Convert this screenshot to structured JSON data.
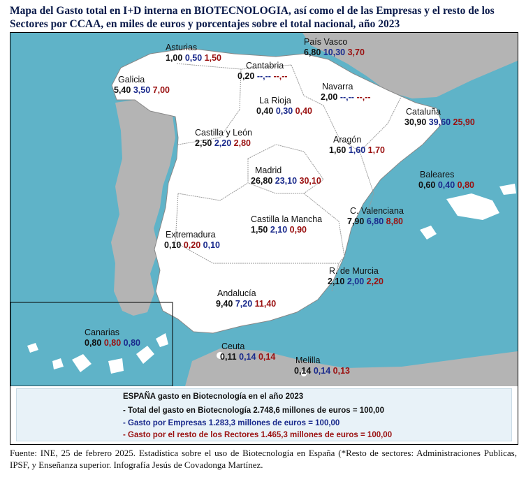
{
  "title": "Mapa del Gasto total en I+D interna en BIOTECNOLOGIA, así como el de las Empresas y el resto de los Sectores por CCAA, en miles de euros y porcentajes sobre el total nacional, año 2023",
  "colors": {
    "sea": "#5fb3c8",
    "land_spain": "#ffffff",
    "land_other": "#b4b4b4",
    "total": "#111111",
    "empresas": "#1a2a8c",
    "resto": "#9a1010"
  },
  "regions": [
    {
      "name": "Asturias",
      "total": "1,00",
      "empresas": "0,50",
      "resto": "1,50"
    },
    {
      "name": "País Vasco",
      "total": "6,80",
      "empresas": "10,30",
      "resto": "3,70"
    },
    {
      "name": "Cantabria",
      "total": "0,20",
      "empresas": "--,--",
      "resto": "--,--"
    },
    {
      "name": "Galicia",
      "total": "5,40",
      "empresas": "3,50",
      "resto": "7,00"
    },
    {
      "name": "Navarra",
      "total": "2,00",
      "empresas": "--,--",
      "resto": "--,--"
    },
    {
      "name": "La Rioja",
      "total": "0,40",
      "empresas": "0,30",
      "resto": "0,40"
    },
    {
      "name": "Cataluña",
      "total": "30,90",
      "empresas": "39,60",
      "resto": "25,90"
    },
    {
      "name": "Castilla y León",
      "total": "2,50",
      "empresas": "2,20",
      "resto": "2,80"
    },
    {
      "name": "Aragón",
      "total": "1,60",
      "empresas": "1,60",
      "resto": "1,70"
    },
    {
      "name": "Madrid",
      "total": "26,80",
      "empresas": "23,10",
      "resto": "30,10"
    },
    {
      "name": "Baleares",
      "total": "0,60",
      "empresas": "0,40",
      "resto": "0,80"
    },
    {
      "name": "C. Valenciana",
      "total": "7,90",
      "empresas": "6,80",
      "resto": "8,80"
    },
    {
      "name": "Castilla la Mancha",
      "total": "1,50",
      "empresas": "2,10",
      "resto": "0,90"
    },
    {
      "name": "Extremadura",
      "total": "0,10",
      "empresas": "0,20",
      "resto": "0,10"
    },
    {
      "name": "R. de Murcia",
      "total": "2,10",
      "empresas": "2,00",
      "resto": "2,20"
    },
    {
      "name": "Andalucía",
      "total": "9,40",
      "empresas": "7,20",
      "resto": "11,40"
    },
    {
      "name": "Canarias",
      "total": "0,80",
      "empresas": "0,80",
      "resto": "0,80"
    },
    {
      "name": "Ceuta",
      "total": "0,11",
      "empresas": "0,14",
      "resto": "0,14"
    },
    {
      "name": "Melilla",
      "total": "0,14",
      "empresas": "0,14",
      "resto": "0,13"
    }
  ],
  "summary": {
    "title": "ESPAÑA gasto en Biotecnología en el año 2023",
    "total": "- Total del gasto en Biotecnología 2.748,6 millones de euros = 100,00",
    "empresas": "- Gasto por Empresas 1.283,3 millones de euros = 100,00",
    "resto": "- Gasto por el resto de los Rectores 1.465,3 millones de euros = 100,00"
  },
  "source": "Fuente: INE, 25 de febrero 2025. Estadística sobre el uso de Biotecnología en España (*Resto de sectores: Administraciones Publicas, IPSF, y Enseñanza superior. Infografía Jesús de Covadonga Martínez."
}
